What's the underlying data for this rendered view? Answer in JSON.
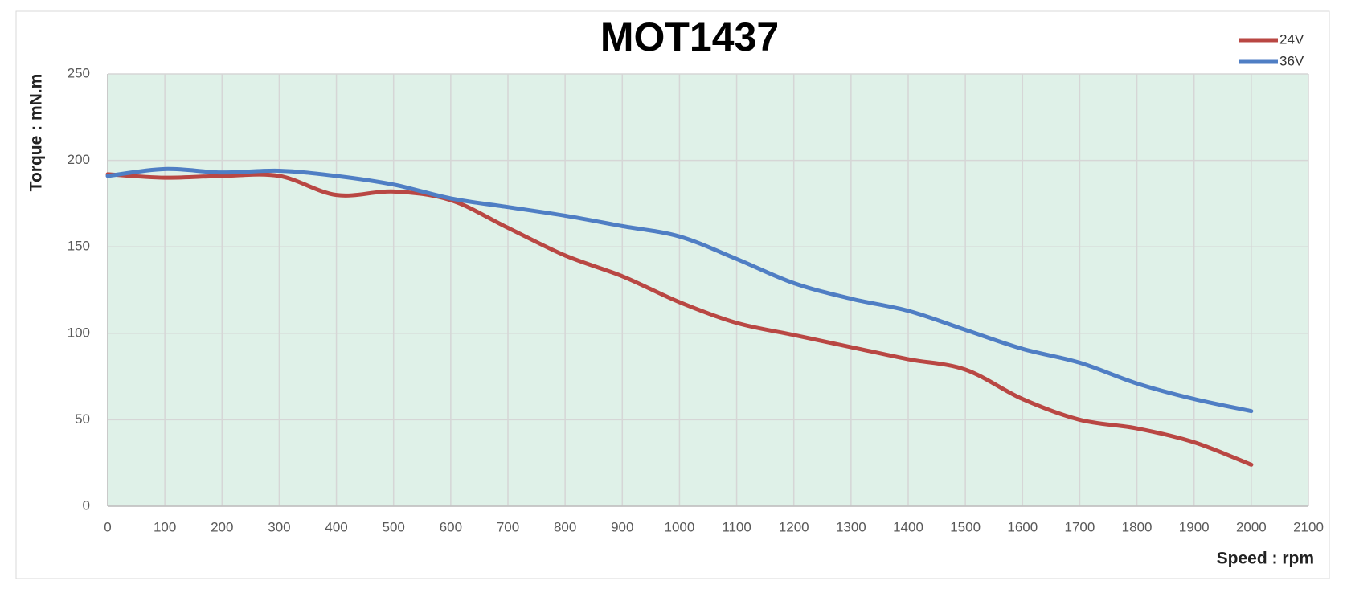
{
  "chart_data": {
    "type": "line",
    "title": "MOT1437",
    "y_label": "Torque : mN.m",
    "x_label": "Speed : rpm",
    "x": [
      0,
      100,
      200,
      300,
      400,
      500,
      600,
      700,
      800,
      900,
      1000,
      1100,
      1200,
      1300,
      1400,
      1500,
      1600,
      1700,
      1800,
      1900,
      2000
    ],
    "series": [
      {
        "name": "24V",
        "color": "#b94743",
        "values": [
          192,
          190,
          191,
          191,
          180,
          182,
          177,
          161,
          145,
          133,
          118,
          106,
          99,
          92,
          85,
          79,
          62,
          50,
          45,
          37,
          24
        ]
      },
      {
        "name": "36V",
        "color": "#4f7ec4",
        "values": [
          191,
          195,
          193,
          194,
          191,
          186,
          178,
          173,
          168,
          162,
          156,
          143,
          129,
          120,
          113,
          102,
          91,
          83,
          71,
          62,
          55
        ]
      }
    ],
    "xlim": [
      0,
      2100
    ],
    "xticks": [
      0,
      100,
      200,
      300,
      400,
      500,
      600,
      700,
      800,
      900,
      1000,
      1100,
      1200,
      1300,
      1400,
      1500,
      1600,
      1700,
      1800,
      1900,
      2000,
      2100
    ],
    "ylim": [
      0,
      250
    ],
    "yticks": [
      0,
      50,
      100,
      150,
      200,
      250
    ],
    "grid": true,
    "legend": "top-right",
    "plot_background": "#dff1e8"
  }
}
